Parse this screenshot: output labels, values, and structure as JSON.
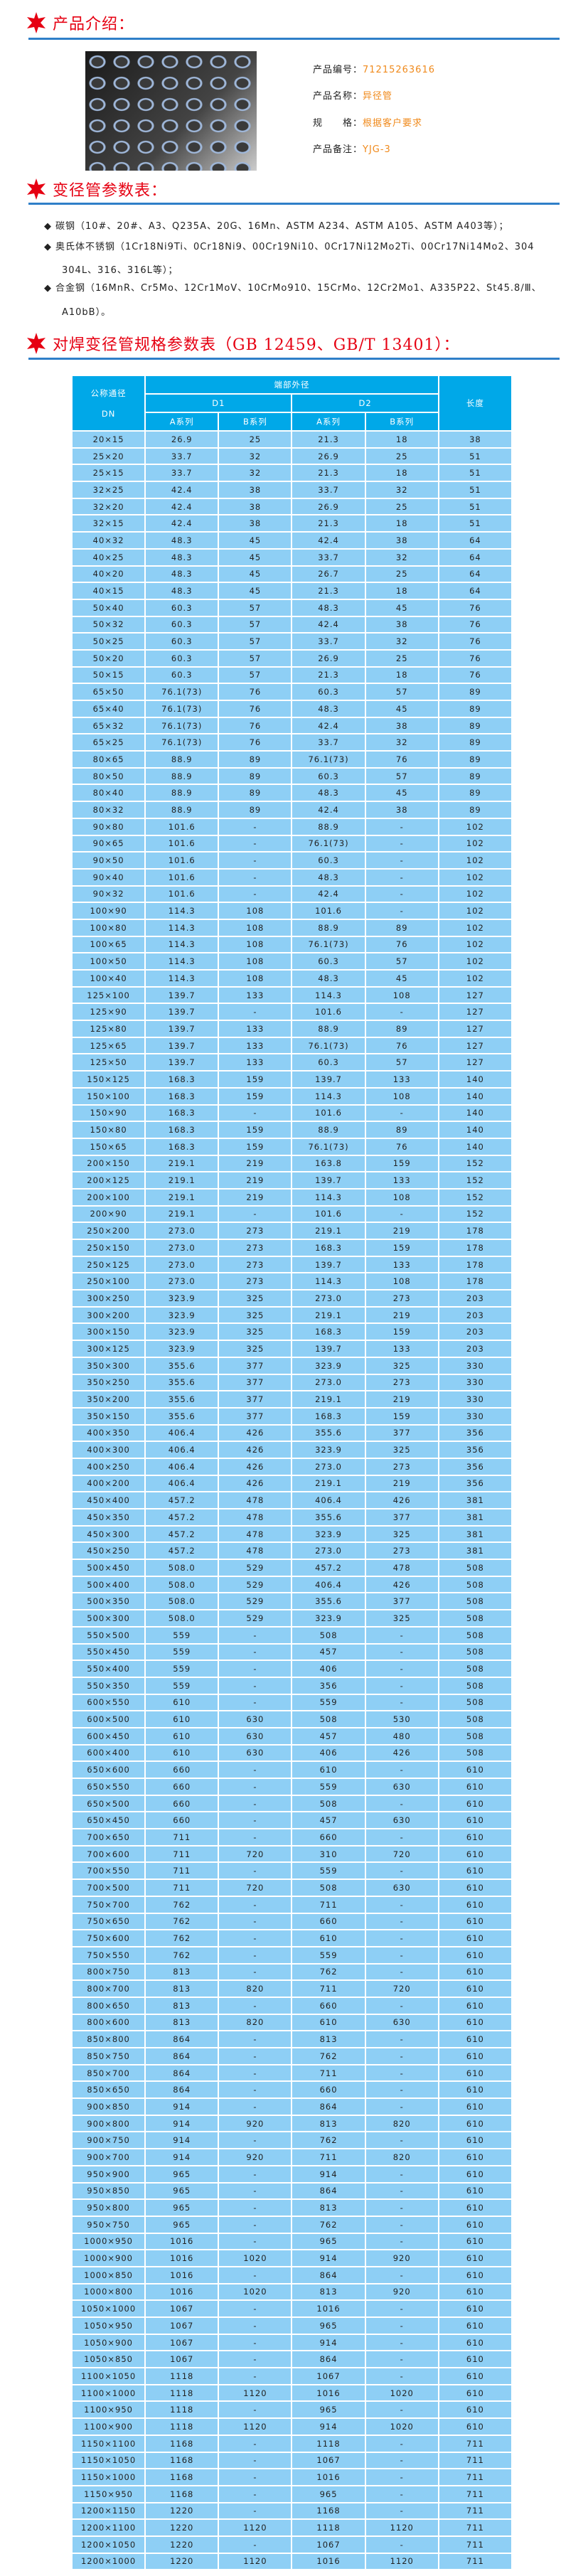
{
  "colors": {
    "title_red": "#e60012",
    "rule_blue": "#2f7fc8",
    "header_blue": "#00a8e8",
    "row_blue": "#8ecff5",
    "value_orange": "#f08a1c"
  },
  "intro": {
    "title": "产品介绍：",
    "photo_icon": "reducer-pipes-photo",
    "fields": [
      {
        "label": "产品编号：",
        "value": "71215263616"
      },
      {
        "label": "产品名称：",
        "value": "异径管"
      },
      {
        "label": "规　　格：",
        "value": "根据客户要求"
      },
      {
        "label": "产品备注：",
        "value": "YJG-3"
      }
    ]
  },
  "params": {
    "title": "变径管参数表：",
    "items": [
      {
        "line1": "碳钢（10#、20#、A3、Q235A、20G、16Mn、ASTM A234、ASTM A105、ASTM A403等）；",
        "line2": ""
      },
      {
        "line1": "奥氏体不锈钢（1Cr18Ni9Ti、0Cr18Ni9、00Cr19Ni10、0Cr17Ni12Mo2Ti、00Cr17Ni14Mo2、304",
        "line2": "304L、316、316L等）；"
      },
      {
        "line1": "合金钢（16MnR、Cr5Mo、12Cr1MoV、10CrMo910、15CrMo、12Cr2Mo1、A335P22、St45.8/Ⅲ、",
        "line2": "A10bB）。"
      }
    ]
  },
  "spec": {
    "title": "对焊变径管规格参数表（GB 12459、GB/T 13401）：",
    "header": {
      "dn": "公称通径",
      "dn2": "DN",
      "od": "端部外径",
      "d1": "D1",
      "d2": "D2",
      "a": "A系列",
      "b": "B系列",
      "length": "长度"
    },
    "rows": [
      [
        "20×15",
        "26.9",
        "25",
        "21.3",
        "18",
        "38"
      ],
      [
        "25×20",
        "33.7",
        "32",
        "26.9",
        "25",
        "51"
      ],
      [
        "25×15",
        "33.7",
        "32",
        "21.3",
        "18",
        "51"
      ],
      [
        "32×25",
        "42.4",
        "38",
        "33.7",
        "32",
        "51"
      ],
      [
        "32×20",
        "42.4",
        "38",
        "26.9",
        "25",
        "51"
      ],
      [
        "32×15",
        "42.4",
        "38",
        "21.3",
        "18",
        "51"
      ],
      [
        "40×32",
        "48.3",
        "45",
        "42.4",
        "38",
        "64"
      ],
      [
        "40×25",
        "48.3",
        "45",
        "33.7",
        "32",
        "64"
      ],
      [
        "40×20",
        "48.3",
        "45",
        "26.7",
        "25",
        "64"
      ],
      [
        "40×15",
        "48.3",
        "45",
        "21.3",
        "18",
        "64"
      ],
      [
        "50×40",
        "60.3",
        "57",
        "48.3",
        "45",
        "76"
      ],
      [
        "50×32",
        "60.3",
        "57",
        "42.4",
        "38",
        "76"
      ],
      [
        "50×25",
        "60.3",
        "57",
        "33.7",
        "32",
        "76"
      ],
      [
        "50×20",
        "60.3",
        "57",
        "26.9",
        "25",
        "76"
      ],
      [
        "50×15",
        "60.3",
        "57",
        "21.3",
        "18",
        "76"
      ],
      [
        "65×50",
        "76.1(73)",
        "76",
        "60.3",
        "57",
        "89"
      ],
      [
        "65×40",
        "76.1(73)",
        "76",
        "48.3",
        "45",
        "89"
      ],
      [
        "65×32",
        "76.1(73)",
        "76",
        "42.4",
        "38",
        "89"
      ],
      [
        "65×25",
        "76.1(73)",
        "76",
        "33.7",
        "32",
        "89"
      ],
      [
        "80×65",
        "88.9",
        "89",
        "76.1(73)",
        "76",
        "89"
      ],
      [
        "80×50",
        "88.9",
        "89",
        "60.3",
        "57",
        "89"
      ],
      [
        "80×40",
        "88.9",
        "89",
        "48.3",
        "45",
        "89"
      ],
      [
        "80×32",
        "88.9",
        "89",
        "42.4",
        "38",
        "89"
      ],
      [
        "90×80",
        "101.6",
        "-",
        "88.9",
        "-",
        "102"
      ],
      [
        "90×65",
        "101.6",
        "-",
        "76.1(73)",
        "-",
        "102"
      ],
      [
        "90×50",
        "101.6",
        "-",
        "60.3",
        "-",
        "102"
      ],
      [
        "90×40",
        "101.6",
        "-",
        "48.3",
        "-",
        "102"
      ],
      [
        "90×32",
        "101.6",
        "-",
        "42.4",
        "-",
        "102"
      ],
      [
        "100×90",
        "114.3",
        "108",
        "101.6",
        "-",
        "102"
      ],
      [
        "100×80",
        "114.3",
        "108",
        "88.9",
        "89",
        "102"
      ],
      [
        "100×65",
        "114.3",
        "108",
        "76.1(73)",
        "76",
        "102"
      ],
      [
        "100×50",
        "114.3",
        "108",
        "60.3",
        "57",
        "102"
      ],
      [
        "100×40",
        "114.3",
        "108",
        "48.3",
        "45",
        "102"
      ],
      [
        "125×100",
        "139.7",
        "133",
        "114.3",
        "108",
        "127"
      ],
      [
        "125×90",
        "139.7",
        "-",
        "101.6",
        "-",
        "127"
      ],
      [
        "125×80",
        "139.7",
        "133",
        "88.9",
        "89",
        "127"
      ],
      [
        "125×65",
        "139.7",
        "133",
        "76.1(73)",
        "76",
        "127"
      ],
      [
        "125×50",
        "139.7",
        "133",
        "60.3",
        "57",
        "127"
      ],
      [
        "150×125",
        "168.3",
        "159",
        "139.7",
        "133",
        "140"
      ],
      [
        "150×100",
        "168.3",
        "159",
        "114.3",
        "108",
        "140"
      ],
      [
        "150×90",
        "168.3",
        "-",
        "101.6",
        "-",
        "140"
      ],
      [
        "150×80",
        "168.3",
        "159",
        "88.9",
        "89",
        "140"
      ],
      [
        "150×65",
        "168.3",
        "159",
        "76.1(73)",
        "76",
        "140"
      ],
      [
        "200×150",
        "219.1",
        "219",
        "163.8",
        "159",
        "152"
      ],
      [
        "200×125",
        "219.1",
        "219",
        "139.7",
        "133",
        "152"
      ],
      [
        "200×100",
        "219.1",
        "219",
        "114.3",
        "108",
        "152"
      ],
      [
        "200×90",
        "219.1",
        "-",
        "101.6",
        "-",
        "152"
      ],
      [
        "250×200",
        "273.0",
        "273",
        "219.1",
        "219",
        "178"
      ],
      [
        "250×150",
        "273.0",
        "273",
        "168.3",
        "159",
        "178"
      ],
      [
        "250×125",
        "273.0",
        "273",
        "139.7",
        "133",
        "178"
      ],
      [
        "250×100",
        "273.0",
        "273",
        "114.3",
        "108",
        "178"
      ],
      [
        "300×250",
        "323.9",
        "325",
        "273.0",
        "273",
        "203"
      ],
      [
        "300×200",
        "323.9",
        "325",
        "219.1",
        "219",
        "203"
      ],
      [
        "300×150",
        "323.9",
        "325",
        "168.3",
        "159",
        "203"
      ],
      [
        "300×125",
        "323.9",
        "325",
        "139.7",
        "133",
        "203"
      ],
      [
        "350×300",
        "355.6",
        "377",
        "323.9",
        "325",
        "330"
      ],
      [
        "350×250",
        "355.6",
        "377",
        "273.0",
        "273",
        "330"
      ],
      [
        "350×200",
        "355.6",
        "377",
        "219.1",
        "219",
        "330"
      ],
      [
        "350×150",
        "355.6",
        "377",
        "168.3",
        "159",
        "330"
      ],
      [
        "400×350",
        "406.4",
        "426",
        "355.6",
        "377",
        "356"
      ],
      [
        "400×300",
        "406.4",
        "426",
        "323.9",
        "325",
        "356"
      ],
      [
        "400×250",
        "406.4",
        "426",
        "273.0",
        "273",
        "356"
      ],
      [
        "400×200",
        "406.4",
        "426",
        "219.1",
        "219",
        "356"
      ],
      [
        "450×400",
        "457.2",
        "478",
        "406.4",
        "426",
        "381"
      ],
      [
        "450×350",
        "457.2",
        "478",
        "355.6",
        "377",
        "381"
      ],
      [
        "450×300",
        "457.2",
        "478",
        "323.9",
        "325",
        "381"
      ],
      [
        "450×250",
        "457.2",
        "478",
        "273.0",
        "273",
        "381"
      ],
      [
        "500×450",
        "508.0",
        "529",
        "457.2",
        "478",
        "508"
      ],
      [
        "500×400",
        "508.0",
        "529",
        "406.4",
        "426",
        "508"
      ],
      [
        "500×350",
        "508.0",
        "529",
        "355.6",
        "377",
        "508"
      ],
      [
        "500×300",
        "508.0",
        "529",
        "323.9",
        "325",
        "508"
      ],
      [
        "550×500",
        "559",
        "-",
        "508",
        "-",
        "508"
      ],
      [
        "550×450",
        "559",
        "-",
        "457",
        "-",
        "508"
      ],
      [
        "550×400",
        "559",
        "-",
        "406",
        "-",
        "508"
      ],
      [
        "550×350",
        "559",
        "-",
        "356",
        "-",
        "508"
      ],
      [
        "600×550",
        "610",
        "-",
        "559",
        "-",
        "508"
      ],
      [
        "600×500",
        "610",
        "630",
        "508",
        "530",
        "508"
      ],
      [
        "600×450",
        "610",
        "630",
        "457",
        "480",
        "508"
      ],
      [
        "600×400",
        "610",
        "630",
        "406",
        "426",
        "508"
      ],
      [
        "650×600",
        "660",
        "-",
        "610",
        "-",
        "610"
      ],
      [
        "650×550",
        "660",
        "-",
        "559",
        "630",
        "610"
      ],
      [
        "650×500",
        "660",
        "-",
        "508",
        "-",
        "610"
      ],
      [
        "650×450",
        "660",
        "-",
        "457",
        "630",
        "610"
      ],
      [
        "700×650",
        "711",
        "-",
        "660",
        "-",
        "610"
      ],
      [
        "700×600",
        "711",
        "720",
        "310",
        "720",
        "610"
      ],
      [
        "700×550",
        "711",
        "-",
        "559",
        "-",
        "610"
      ],
      [
        "700×500",
        "711",
        "720",
        "508",
        "630",
        "610"
      ],
      [
        "750×700",
        "762",
        "-",
        "711",
        "-",
        "610"
      ],
      [
        "750×650",
        "762",
        "-",
        "660",
        "-",
        "610"
      ],
      [
        "750×600",
        "762",
        "-",
        "610",
        "-",
        "610"
      ],
      [
        "750×550",
        "762",
        "-",
        "559",
        "-",
        "610"
      ],
      [
        "800×750",
        "813",
        "-",
        "762",
        "-",
        "610"
      ],
      [
        "800×700",
        "813",
        "820",
        "711",
        "720",
        "610"
      ],
      [
        "800×650",
        "813",
        "-",
        "660",
        "-",
        "610"
      ],
      [
        "800×600",
        "813",
        "820",
        "610",
        "630",
        "610"
      ],
      [
        "850×800",
        "864",
        "-",
        "813",
        "-",
        "610"
      ],
      [
        "850×750",
        "864",
        "-",
        "762",
        "-",
        "610"
      ],
      [
        "850×700",
        "864",
        "-",
        "711",
        "-",
        "610"
      ],
      [
        "850×650",
        "864",
        "-",
        "660",
        "-",
        "610"
      ],
      [
        "900×850",
        "914",
        "-",
        "864",
        "-",
        "610"
      ],
      [
        "900×800",
        "914",
        "920",
        "813",
        "820",
        "610"
      ],
      [
        "900×750",
        "914",
        "-",
        "762",
        "-",
        "610"
      ],
      [
        "900×700",
        "914",
        "920",
        "711",
        "820",
        "610"
      ],
      [
        "950×900",
        "965",
        "-",
        "914",
        "-",
        "610"
      ],
      [
        "950×850",
        "965",
        "-",
        "864",
        "-",
        "610"
      ],
      [
        "950×800",
        "965",
        "-",
        "813",
        "-",
        "610"
      ],
      [
        "950×750",
        "965",
        "-",
        "762",
        "-",
        "610"
      ],
      [
        "1000×950",
        "1016",
        "-",
        "965",
        "-",
        "610"
      ],
      [
        "1000×900",
        "1016",
        "1020",
        "914",
        "920",
        "610"
      ],
      [
        "1000×850",
        "1016",
        "-",
        "864",
        "-",
        "610"
      ],
      [
        "1000×800",
        "1016",
        "1020",
        "813",
        "920",
        "610"
      ],
      [
        "1050×1000",
        "1067",
        "-",
        "1016",
        "-",
        "610"
      ],
      [
        "1050×950",
        "1067",
        "-",
        "965",
        "-",
        "610"
      ],
      [
        "1050×900",
        "1067",
        "-",
        "914",
        "-",
        "610"
      ],
      [
        "1050×850",
        "1067",
        "-",
        "864",
        "-",
        "610"
      ],
      [
        "1100×1050",
        "1118",
        "-",
        "1067",
        "-",
        "610"
      ],
      [
        "1100×1000",
        "1118",
        "1120",
        "1016",
        "1020",
        "610"
      ],
      [
        "1100×950",
        "1118",
        "-",
        "965",
        "-",
        "610"
      ],
      [
        "1100×900",
        "1118",
        "1120",
        "914",
        "1020",
        "610"
      ],
      [
        "1150×1100",
        "1168",
        "-",
        "1118",
        "-",
        "711"
      ],
      [
        "1150×1050",
        "1168",
        "-",
        "1067",
        "-",
        "711"
      ],
      [
        "1150×1000",
        "1168",
        "-",
        "1016",
        "-",
        "711"
      ],
      [
        "1150×950",
        "1168",
        "-",
        "965",
        "-",
        "711"
      ],
      [
        "1200×1150",
        "1220",
        "-",
        "1168",
        "-",
        "711"
      ],
      [
        "1200×1100",
        "1220",
        "1120",
        "1118",
        "1120",
        "711"
      ],
      [
        "1200×1050",
        "1220",
        "-",
        "1067",
        "-",
        "711"
      ],
      [
        "1200×1000",
        "1220",
        "1120",
        "1016",
        "1120",
        "711"
      ]
    ]
  }
}
